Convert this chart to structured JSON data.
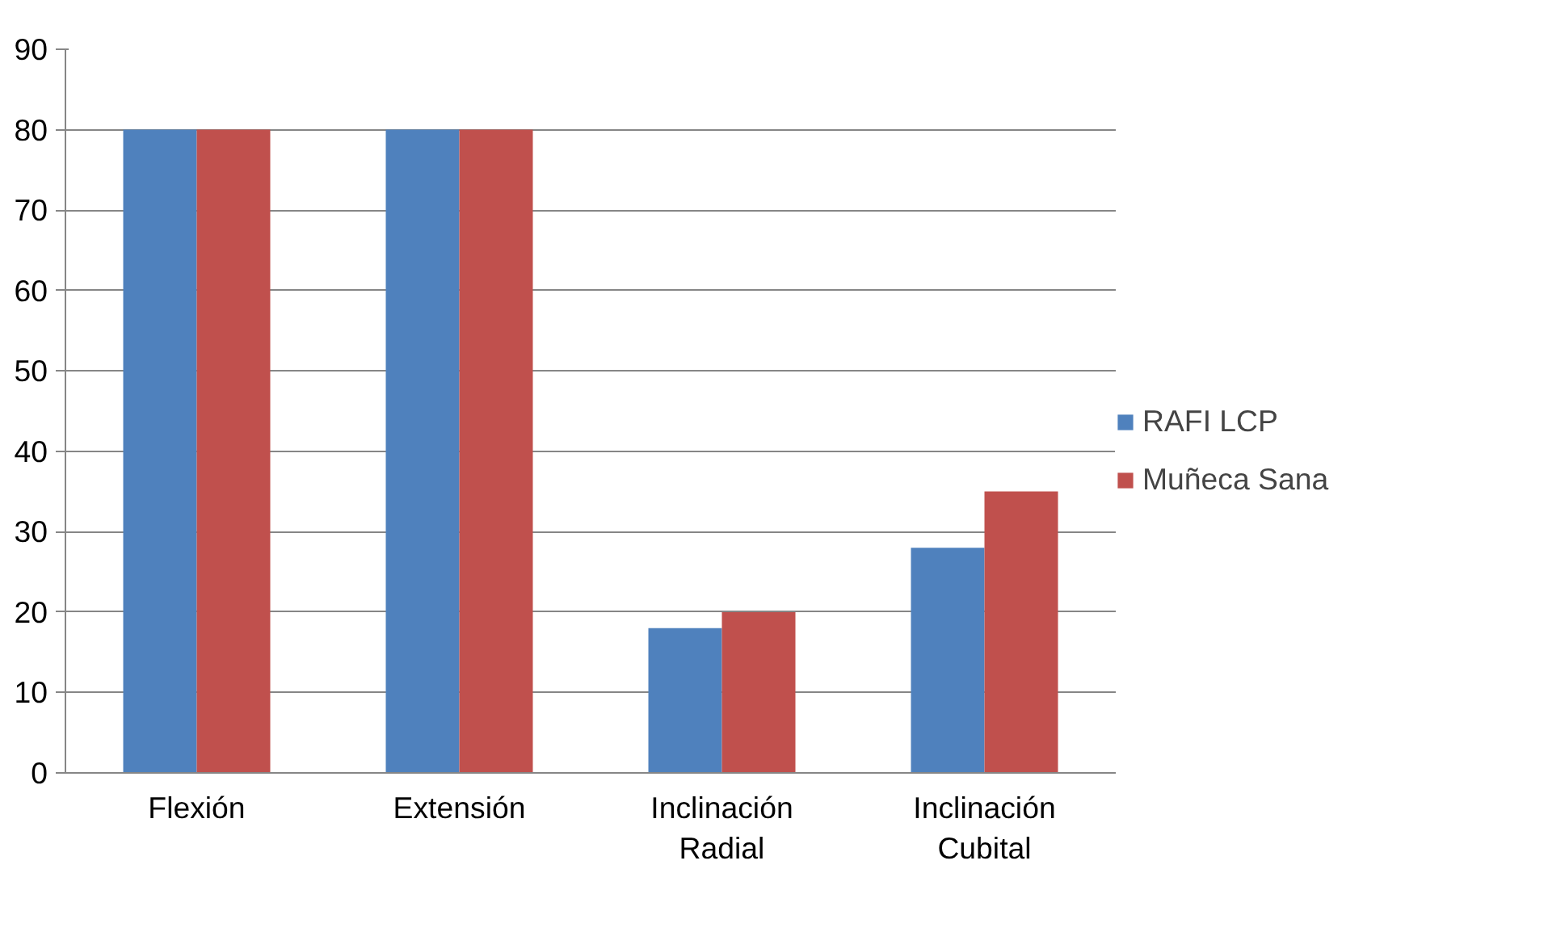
{
  "chart_data": {
    "type": "bar",
    "categories": [
      "Flexión",
      "Extensión",
      "Inclinación Radial",
      "Inclinación Cubital"
    ],
    "series": [
      {
        "name": "RAFI LCP",
        "color": "#4f81bd",
        "values": [
          80,
          80,
          18,
          28
        ]
      },
      {
        "name": "Muñeca Sana",
        "color": "#c0504d",
        "values": [
          80,
          80,
          20,
          35
        ]
      }
    ],
    "ylim": [
      0,
      90
    ],
    "yticks": [
      0,
      10,
      20,
      30,
      40,
      50,
      60,
      70,
      80,
      90
    ],
    "grid": "y",
    "legend": "right"
  }
}
